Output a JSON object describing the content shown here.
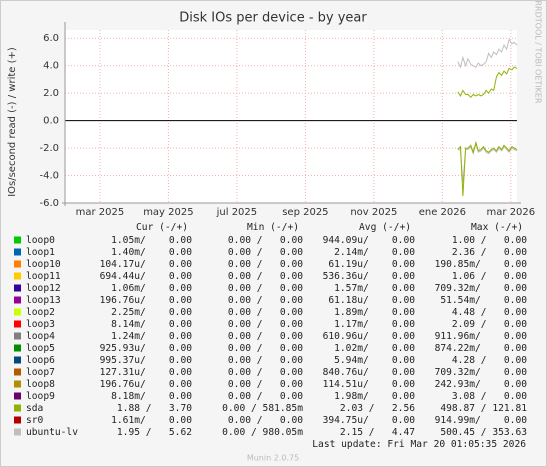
{
  "chart_data": {
    "type": "line",
    "title": "Disk IOs per device - by year",
    "y_label": "IOs/second read (-) / write (+)",
    "side_text": "RRDTOOL / TOBI OETIKER",
    "ylim": [
      -6,
      6.6
    ],
    "yticks": [
      {
        "value": -6,
        "label": "-6.0"
      },
      {
        "value": -4,
        "label": "-4.0"
      },
      {
        "value": -2,
        "label": "-2.0"
      },
      {
        "value": 0,
        "label": "0.0"
      },
      {
        "value": 2,
        "label": "2.0"
      },
      {
        "value": 4,
        "label": "4.0"
      },
      {
        "value": 6,
        "label": "6.0"
      }
    ],
    "xlim": [
      1.98,
      15.18
    ],
    "xticks": [
      {
        "value": 3,
        "label": "mar 2025"
      },
      {
        "value": 5,
        "label": "may 2025"
      },
      {
        "value": 7,
        "label": "jul 2025"
      },
      {
        "value": 9,
        "label": "sep 2025"
      },
      {
        "value": 11,
        "label": "nov 2025"
      },
      {
        "value": 13,
        "label": "ene 2026"
      },
      {
        "value": 15,
        "label": "mar 2026"
      }
    ],
    "grid": true,
    "x": [
      13.45,
      13.53,
      13.6,
      13.68,
      13.75,
      13.83,
      13.9,
      13.98,
      14.05,
      14.13,
      14.2,
      14.28,
      14.35,
      14.43,
      14.5,
      14.58,
      14.65,
      14.73,
      14.8,
      14.88,
      14.95,
      15.03,
      15.1,
      15.18
    ],
    "legend_columns": [
      "Cur (-/+)",
      "Min (-/+)",
      "Avg (-/+)",
      "Max (-/+)"
    ],
    "series": [
      {
        "name": "loop0",
        "color": "#00cc00",
        "cur": "1.05m/    0.00",
        "min": "0.00 /   0.00",
        "avg": "944.09u/    0.00",
        "max": "1.00 /   0.00"
      },
      {
        "name": "loop1",
        "color": "#0066b3",
        "cur": "1.40m/    0.00",
        "min": "0.00 /   0.00",
        "avg": "2.14m/    0.00",
        "max": "2.36 /   0.00"
      },
      {
        "name": "loop10",
        "color": "#ff8000",
        "cur": "104.17u/    0.00",
        "min": "0.00 /   0.00",
        "avg": "61.19u/    0.00",
        "max": "190.85m/    0.00"
      },
      {
        "name": "loop11",
        "color": "#ffcc00",
        "cur": "694.44u/    0.00",
        "min": "0.00 /   0.00",
        "avg": "536.36u/    0.00",
        "max": "1.06 /   0.00"
      },
      {
        "name": "loop12",
        "color": "#330099",
        "cur": "1.06m/    0.00",
        "min": "0.00 /   0.00",
        "avg": "1.57m/    0.00",
        "max": "709.32m/    0.00"
      },
      {
        "name": "loop13",
        "color": "#990099",
        "cur": "196.76u/    0.00",
        "min": "0.00 /   0.00",
        "avg": "61.18u/    0.00",
        "max": "51.54m/    0.00"
      },
      {
        "name": "loop2",
        "color": "#ccff00",
        "cur": "2.25m/    0.00",
        "min": "0.00 /   0.00",
        "avg": "1.89m/    0.00",
        "max": "4.48 /   0.00"
      },
      {
        "name": "loop3",
        "color": "#ff0000",
        "cur": "8.14m/    0.00",
        "min": "0.00 /   0.00",
        "avg": "1.17m/    0.00",
        "max": "2.09 /   0.00"
      },
      {
        "name": "loop4",
        "color": "#808080",
        "cur": "1.24m/    0.00",
        "min": "0.00 /   0.00",
        "avg": "610.96u/    0.00",
        "max": "911.96m/    0.00"
      },
      {
        "name": "loop5",
        "color": "#008f00",
        "cur": "925.93u/    0.00",
        "min": "0.00 /   0.00",
        "avg": "1.02m/    0.00",
        "max": "874.22m/    0.00"
      },
      {
        "name": "loop6",
        "color": "#00487d",
        "cur": "995.37u/    0.00",
        "min": "0.00 /   0.00",
        "avg": "5.94m/    0.00",
        "max": "4.28 /   0.00"
      },
      {
        "name": "loop7",
        "color": "#b35a00",
        "cur": "127.31u/    0.00",
        "min": "0.00 /   0.00",
        "avg": "840.76u/    0.00",
        "max": "709.32m/    0.00"
      },
      {
        "name": "loop8",
        "color": "#b38f00",
        "cur": "196.76u/    0.00",
        "min": "0.00 /   0.00",
        "avg": "114.51u/    0.00",
        "max": "242.93m/    0.00"
      },
      {
        "name": "loop9",
        "color": "#6b006b",
        "cur": "8.18m/    0.00",
        "min": "0.00 /   0.00",
        "avg": "1.98m/    0.00",
        "max": "3.08 /   0.00"
      },
      {
        "name": "sda",
        "color": "#8fb300",
        "cur": "1.88 /   3.70",
        "min": "0.00 / 581.85m",
        "avg": "2.03 /   2.56",
        "max": "498.87 / 121.81",
        "write": [
          2.1,
          1.8,
          2.2,
          1.9,
          1.9,
          1.7,
          1.9,
          1.8,
          1.9,
          1.8,
          1.9,
          2.2,
          2.0,
          2.3,
          2.2,
          3.2,
          3.5,
          3.3,
          3.6,
          3.4,
          3.8,
          3.7,
          3.9,
          3.8
        ],
        "read": [
          -2.1,
          -1.9,
          -5.5,
          -2.0,
          -2.0,
          -1.8,
          -2.3,
          -1.6,
          -2.2,
          -2.1,
          -1.9,
          -2.2,
          -2.3,
          -2.1,
          -2.0,
          -2.2,
          -1.9,
          -2.1,
          -1.8,
          -2.0,
          -2.2,
          -1.9,
          -2.0,
          -2.1
        ]
      },
      {
        "name": "sr0",
        "color": "#b30000",
        "cur": "1.61m/    0.00",
        "min": "0.00 /   0.00",
        "avg": "394.75u/    0.00",
        "max": "914.99m/    0.00"
      },
      {
        "name": "ubuntu-lv",
        "color": "#bebebe",
        "cur": "1.95 /   5.62",
        "min": "0.00 / 980.05m",
        "avg": "2.15 /   4.47",
        "max": "500.45 / 353.63",
        "write": [
          4.3,
          3.9,
          4.6,
          4.0,
          4.5,
          4.1,
          4.0,
          3.9,
          4.2,
          4.0,
          4.1,
          4.3,
          4.9,
          4.6,
          5.0,
          4.8,
          5.2,
          5.0,
          5.5,
          5.2,
          5.9,
          5.6,
          5.7,
          5.5
        ],
        "read": [
          -2.0,
          -2.2,
          -4.5,
          -2.1,
          -2.1,
          -1.9,
          -2.4,
          -1.7,
          -2.3,
          -2.2,
          -2.0,
          -2.3,
          -2.4,
          -2.2,
          -2.1,
          -2.3,
          -2.0,
          -2.2,
          -1.9,
          -2.1,
          -2.3,
          -2.0,
          -2.1,
          -2.2
        ]
      }
    ],
    "last_update": "Last update: Fri Mar 20 01:05:35 2026",
    "footer": "Munin 2.0.75"
  }
}
